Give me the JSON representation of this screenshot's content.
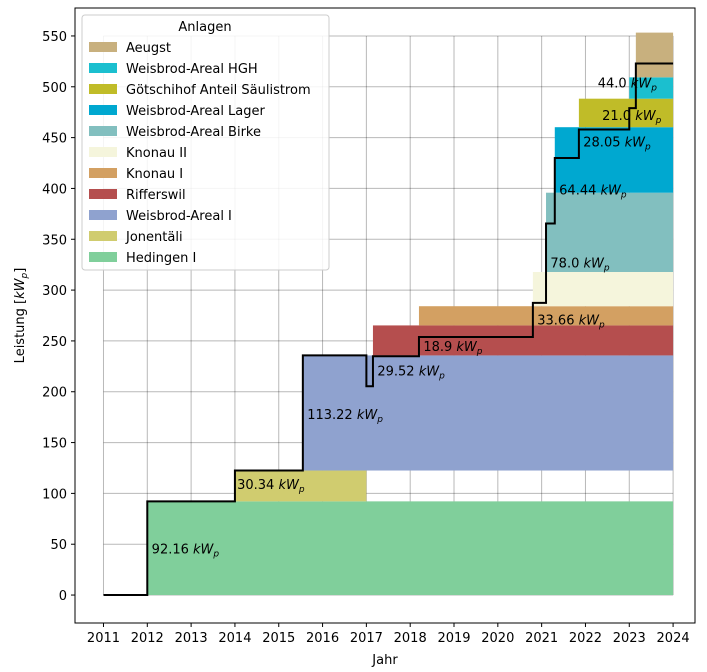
{
  "chart_data": {
    "type": "area",
    "title": "",
    "xlabel": "Jahr",
    "ylabel_prefix": "Leistung [",
    "ylabel_math": "kW",
    "ylabel_sub": "p",
    "ylabel_suffix": "]",
    "xlim": [
      2010.35,
      2024.5
    ],
    "ylim": [
      -27.5,
      577.5
    ],
    "xticks": [
      2011,
      2012,
      2013,
      2014,
      2015,
      2016,
      2017,
      2018,
      2019,
      2020,
      2021,
      2022,
      2023,
      2024
    ],
    "yticks": [
      0,
      50,
      100,
      150,
      200,
      250,
      300,
      350,
      400,
      450,
      500,
      550
    ],
    "grid": true,
    "legend": {
      "title": "Anlagen",
      "placement": "top-left"
    },
    "unit_math": "kW",
    "unit_sub": "p",
    "series": [
      {
        "name": "Hedingen I",
        "value": 92.16,
        "start": 2012.0,
        "end": 2024.0,
        "color": "#80cf9b",
        "label": "92.16"
      },
      {
        "name": "Jonentäli",
        "value": 30.34,
        "start": 2014.0,
        "end": 2017.0,
        "color": "#d0cc6f",
        "label": "30.34"
      },
      {
        "name": "Weisbrod-Areal I",
        "value": 113.22,
        "start": 2015.55,
        "end": 2024.0,
        "color": "#8fa2cf",
        "label": "113.22"
      },
      {
        "name": "Rifferswil",
        "value": 29.52,
        "start": 2017.15,
        "end": 2024.0,
        "color": "#b54e4e",
        "label": "29.52"
      },
      {
        "name": "Knonau I",
        "value": 18.9,
        "start": 2018.2,
        "end": 2024.0,
        "color": "#d3a062",
        "label": "18.9"
      },
      {
        "name": "Knonau II",
        "value": 33.66,
        "start": 2020.8,
        "end": 2024.0,
        "color": "#f5f5dc",
        "label": "33.66"
      },
      {
        "name": "Weisbrod-Areal Birke",
        "value": 78.0,
        "start": 2021.1,
        "end": 2024.0,
        "color": "#82bfbf",
        "label": "78.0"
      },
      {
        "name": "Weisbrod-Areal Lager",
        "value": 64.44,
        "start": 2021.3,
        "end": 2024.0,
        "color": "#00a8d0",
        "label": "64.44"
      },
      {
        "name": "Götschihof Anteil Säulistrom",
        "value": 28.05,
        "start": 2021.85,
        "end": 2024.0,
        "color": "#c0bc28",
        "label": "28.05"
      },
      {
        "name": "Weisbrod-Areal HGH",
        "value": 21.0,
        "start": 2023.0,
        "end": 2024.0,
        "color": "#1bbfcf",
        "label": "21.0"
      },
      {
        "name": "Aeugst",
        "value": 44.0,
        "start": 2023.15,
        "end": 2024.0,
        "color": "#c8b07e",
        "label": "44.0"
      }
    ],
    "total_line": [
      [
        2011.0,
        0
      ],
      [
        2012.0,
        0
      ],
      [
        2012.0,
        92.16
      ],
      [
        2014.0,
        92.16
      ],
      [
        2014.0,
        122.5
      ],
      [
        2015.55,
        122.5
      ],
      [
        2015.55,
        235.72
      ],
      [
        2017.0,
        235.72
      ],
      [
        2017.0,
        205.38
      ],
      [
        2017.15,
        205.38
      ],
      [
        2017.15,
        234.9
      ],
      [
        2018.2,
        234.9
      ],
      [
        2018.2,
        253.8
      ],
      [
        2020.8,
        253.8
      ],
      [
        2020.8,
        287.46
      ],
      [
        2021.1,
        287.46
      ],
      [
        2021.1,
        365.46
      ],
      [
        2021.3,
        365.46
      ],
      [
        2021.3,
        429.9
      ],
      [
        2021.85,
        429.9
      ],
      [
        2021.85,
        457.95
      ],
      [
        2023.0,
        457.95
      ],
      [
        2023.0,
        478.95
      ],
      [
        2023.15,
        478.95
      ],
      [
        2023.15,
        522.95
      ],
      [
        2024.0,
        522.95
      ]
    ]
  }
}
